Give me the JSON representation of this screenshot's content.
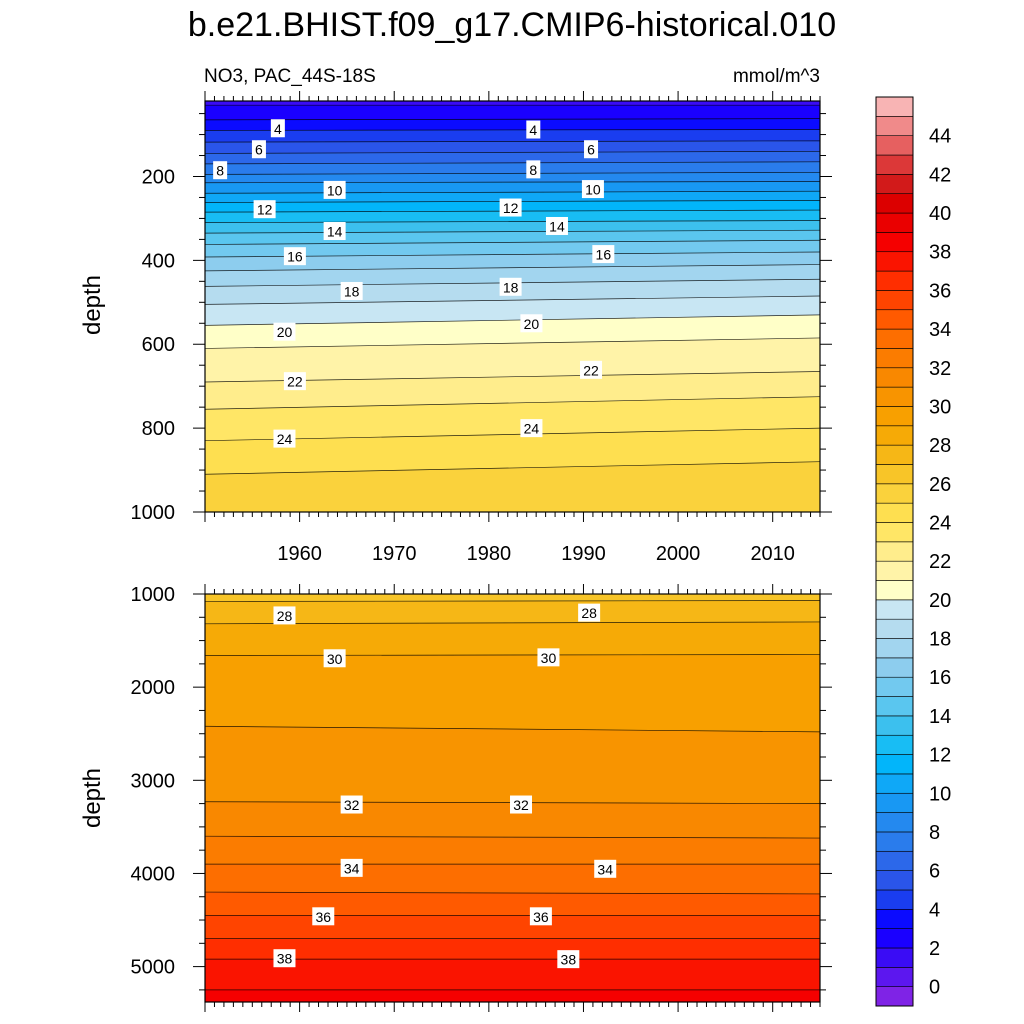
{
  "chart_data": {
    "type": "heatmap",
    "title": "b.e21.BHIST.f09_g17.CMIP6-historical.010",
    "subtitle_left": "NO3, PAC_44S-18S",
    "units": "mmol/m^3",
    "xlim": [
      1950,
      2015
    ],
    "x_ticks": [
      1960,
      1970,
      1980,
      1990,
      2000,
      2010
    ],
    "colorbar": {
      "levels": [
        -1,
        0,
        1,
        2,
        3,
        4,
        5,
        6,
        7,
        8,
        9,
        10,
        11,
        12,
        13,
        14,
        15,
        16,
        17,
        18,
        19,
        20,
        21,
        22,
        23,
        24,
        25,
        26,
        27,
        28,
        29,
        30,
        31,
        32,
        33,
        34,
        35,
        36,
        37,
        38,
        39,
        40,
        41,
        42,
        43,
        44,
        45,
        46
      ],
      "tick_labels": [
        "0",
        "2",
        "4",
        "6",
        "8",
        "10",
        "12",
        "14",
        "16",
        "18",
        "20",
        "22",
        "24",
        "26",
        "28",
        "30",
        "32",
        "34",
        "36",
        "38",
        "40",
        "42",
        "44"
      ],
      "colors": [
        "#7f23e6",
        "#5c17ef",
        "#3a0cf5",
        "#1a00ff",
        "#0b0bff",
        "#1a3df0",
        "#2a55ea",
        "#2c68ea",
        "#2a7cec",
        "#2489ef",
        "#1898f3",
        "#0fa8f7",
        "#02b5fa",
        "#18bdf4",
        "#3cc0ee",
        "#5ac6ef",
        "#72c9ef",
        "#8dcdee",
        "#a2d5ef",
        "#b5dcef",
        "#c8e6f3",
        "#ffffc8",
        "#fff3a8",
        "#ffed8c",
        "#ffe666",
        "#fedf50",
        "#fad23c",
        "#f8c528",
        "#f6b716",
        "#f6aa06",
        "#f8a000",
        "#f89400",
        "#f98800",
        "#fb7c00",
        "#fd6e00",
        "#ff5a00",
        "#ff4400",
        "#ff2e00",
        "#fa1400",
        "#f50000",
        "#ea0000",
        "#dc0000",
        "#d21a1a",
        "#dc3838",
        "#e66060",
        "#f08a8a",
        "#f8b4b4"
      ]
    },
    "panels": [
      {
        "name": "upper",
        "ylabel": "depth",
        "ylim": [
          20,
          1000
        ],
        "y_ticks": [
          200,
          400,
          600,
          800,
          1000
        ],
        "contour_depths": [
          {
            "level": 2,
            "d": [
              30,
              30
            ]
          },
          {
            "level": 3,
            "d": [
              65,
              62
            ]
          },
          {
            "level": 4,
            "d": [
              90,
              88
            ]
          },
          {
            "level": 5,
            "d": [
              118,
              115
            ]
          },
          {
            "level": 6,
            "d": [
              145,
              140
            ]
          },
          {
            "level": 7,
            "d": [
              170,
              165
            ]
          },
          {
            "level": 8,
            "d": [
              195,
              190
            ]
          },
          {
            "level": 9,
            "d": [
              215,
              212
            ]
          },
          {
            "level": 10,
            "d": [
              240,
              235
            ]
          },
          {
            "level": 11,
            "d": [
              262,
              257
            ]
          },
          {
            "level": 12,
            "d": [
              285,
              280
            ]
          },
          {
            "level": 13,
            "d": [
              310,
              305
            ]
          },
          {
            "level": 14,
            "d": [
              335,
              328
            ]
          },
          {
            "level": 15,
            "d": [
              362,
              352
            ]
          },
          {
            "level": 16,
            "d": [
              392,
              380
            ]
          },
          {
            "level": 17,
            "d": [
              425,
              410
            ]
          },
          {
            "level": 18,
            "d": [
              462,
              445
            ]
          },
          {
            "level": 19,
            "d": [
              505,
              485
            ]
          },
          {
            "level": 20,
            "d": [
              555,
              530
            ]
          },
          {
            "level": 21,
            "d": [
              610,
              585
            ]
          },
          {
            "level": 22,
            "d": [
              690,
              665
            ]
          },
          {
            "level": 23,
            "d": [
              755,
              725
            ]
          },
          {
            "level": 24,
            "d": [
              830,
              800
            ]
          },
          {
            "level": 25,
            "d": [
              910,
              880
            ]
          },
          {
            "level": 26,
            "d": [
              1060,
              1000
            ]
          }
        ],
        "contour_labels": [
          {
            "text": "4",
            "x": 1957.7,
            "depth": 85
          },
          {
            "text": "4",
            "x": 1984.7,
            "depth": 88
          },
          {
            "text": "6",
            "x": 1955.7,
            "depth": 135
          },
          {
            "text": "6",
            "x": 1990.8,
            "depth": 135
          },
          {
            "text": "8",
            "x": 1951.6,
            "depth": 185
          },
          {
            "text": "8",
            "x": 1984.7,
            "depth": 183
          },
          {
            "text": "10",
            "x": 1963.7,
            "depth": 232
          },
          {
            "text": "10",
            "x": 1991.0,
            "depth": 230
          },
          {
            "text": "12",
            "x": 1956.3,
            "depth": 278
          },
          {
            "text": "12",
            "x": 1982.3,
            "depth": 274
          },
          {
            "text": "14",
            "x": 1963.7,
            "depth": 330
          },
          {
            "text": "14",
            "x": 1987.2,
            "depth": 318
          },
          {
            "text": "16",
            "x": 1959.5,
            "depth": 390
          },
          {
            "text": "16",
            "x": 1992.1,
            "depth": 385
          },
          {
            "text": "18",
            "x": 1965.5,
            "depth": 473
          },
          {
            "text": "18",
            "x": 1982.3,
            "depth": 463
          },
          {
            "text": "20",
            "x": 1958.4,
            "depth": 570
          },
          {
            "text": "20",
            "x": 1984.5,
            "depth": 550
          },
          {
            "text": "22",
            "x": 1959.5,
            "depth": 688
          },
          {
            "text": "22",
            "x": 1990.8,
            "depth": 661
          },
          {
            "text": "24",
            "x": 1958.4,
            "depth": 825
          },
          {
            "text": "24",
            "x": 1984.5,
            "depth": 800
          }
        ]
      },
      {
        "name": "lower",
        "ylabel": "depth",
        "ylim": [
          1000,
          5380
        ],
        "y_ticks": [
          1000,
          2000,
          3000,
          4000,
          5000
        ],
        "contour_depths": [
          {
            "level": 27,
            "d": [
              1080,
              1070
            ]
          },
          {
            "level": 28,
            "d": [
              1320,
              1300
            ]
          },
          {
            "level": 29,
            "d": [
              1660,
              1650
            ]
          },
          {
            "level": 30,
            "d": [
              2420,
              2480
            ]
          },
          {
            "level": 31,
            "d": [
              3230,
              3250
            ]
          },
          {
            "level": 32,
            "d": [
              3600,
              3620
            ]
          },
          {
            "level": 33,
            "d": [
              3900,
              3900
            ]
          },
          {
            "level": 34,
            "d": [
              4200,
              4220
            ]
          },
          {
            "level": 35,
            "d": [
              4450,
              4450
            ]
          },
          {
            "level": 36,
            "d": [
              4700,
              4700
            ]
          },
          {
            "level": 37,
            "d": [
              4920,
              4920
            ]
          },
          {
            "level": 38,
            "d": [
              5250,
              5250
            ]
          },
          {
            "level": 39,
            "d": [
              5500,
              5500
            ]
          }
        ],
        "contour_labels": [
          {
            "text": "28",
            "x": 1958.4,
            "depth": 1230
          },
          {
            "text": "28",
            "x": 1990.6,
            "depth": 1200
          },
          {
            "text": "30",
            "x": 1963.7,
            "depth": 1690
          },
          {
            "text": "30",
            "x": 1986.3,
            "depth": 1680
          },
          {
            "text": "32",
            "x": 1965.5,
            "depth": 3260
          },
          {
            "text": "32",
            "x": 1983.4,
            "depth": 3260
          },
          {
            "text": "34",
            "x": 1965.5,
            "depth": 3940
          },
          {
            "text": "34",
            "x": 1992.3,
            "depth": 3950
          },
          {
            "text": "36",
            "x": 1962.5,
            "depth": 4460
          },
          {
            "text": "36",
            "x": 1985.5,
            "depth": 4460
          },
          {
            "text": "38",
            "x": 1958.4,
            "depth": 4910
          },
          {
            "text": "38",
            "x": 1988.4,
            "depth": 4920
          }
        ]
      }
    ]
  }
}
